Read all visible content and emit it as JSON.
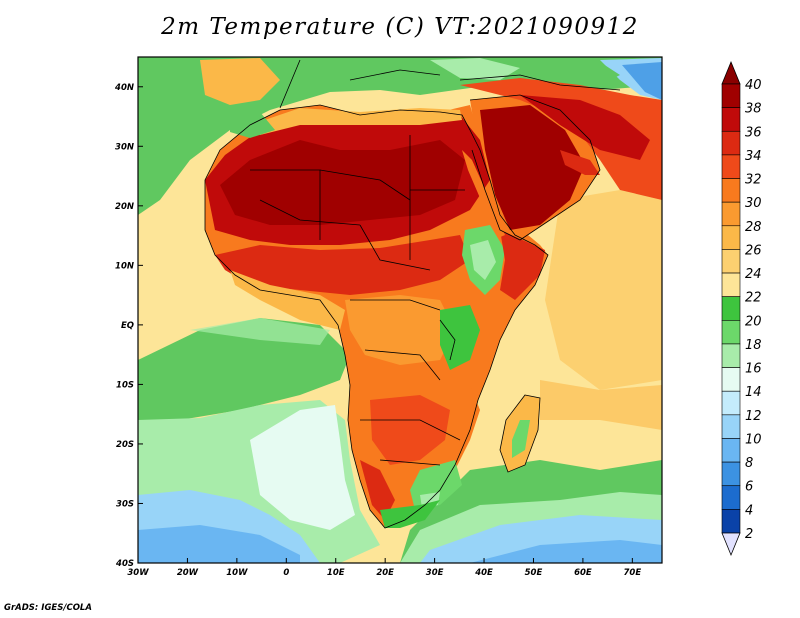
{
  "title": "2m Temperature (C) VT:2021090912",
  "credit": "GrADS: IGES/COLA",
  "map": {
    "lon_range": [
      -30,
      76
    ],
    "lat_range": [
      -40,
      45
    ],
    "lon_ticks": [
      {
        "value": -30,
        "label": "30W"
      },
      {
        "value": -20,
        "label": "20W"
      },
      {
        "value": -10,
        "label": "10W"
      },
      {
        "value": 0,
        "label": "0"
      },
      {
        "value": 10,
        "label": "10E"
      },
      {
        "value": 20,
        "label": "20E"
      },
      {
        "value": 30,
        "label": "30E"
      },
      {
        "value": 40,
        "label": "40E"
      },
      {
        "value": 50,
        "label": "50E"
      },
      {
        "value": 60,
        "label": "60E"
      },
      {
        "value": 70,
        "label": "70E"
      }
    ],
    "lat_ticks": [
      {
        "value": 40,
        "label": "40N"
      },
      {
        "value": 30,
        "label": "30N"
      },
      {
        "value": 20,
        "label": "20N"
      },
      {
        "value": 10,
        "label": "10N"
      },
      {
        "value": 0,
        "label": "EQ"
      },
      {
        "value": -10,
        "label": "10S"
      },
      {
        "value": -20,
        "label": "20S"
      },
      {
        "value": -30,
        "label": "30S"
      },
      {
        "value": -40,
        "label": "40S"
      }
    ]
  },
  "colorbar": {
    "labels": [
      "40",
      "38",
      "36",
      "34",
      "32",
      "30",
      "28",
      "26",
      "24",
      "22",
      "20",
      "18",
      "16",
      "14",
      "12",
      "10",
      "8",
      "6",
      "4",
      "2"
    ],
    "colors": [
      "#a00000",
      "#c00a0a",
      "#dc2a12",
      "#ef4a1a",
      "#f87a1e",
      "#fa9a30",
      "#fbb848",
      "#fcd070",
      "#fde598",
      "#3ec43e",
      "#6cd86a",
      "#a8ecaa",
      "#e6fbf2",
      "#c4ecfc",
      "#98d4f8",
      "#6ab6f2",
      "#3c92e2",
      "#1c6cce",
      "#0a42a8",
      "#001c6a"
    ],
    "top_arrow_color": "#8a0000",
    "bottom_arrow_color": "#e2e2ff"
  }
}
